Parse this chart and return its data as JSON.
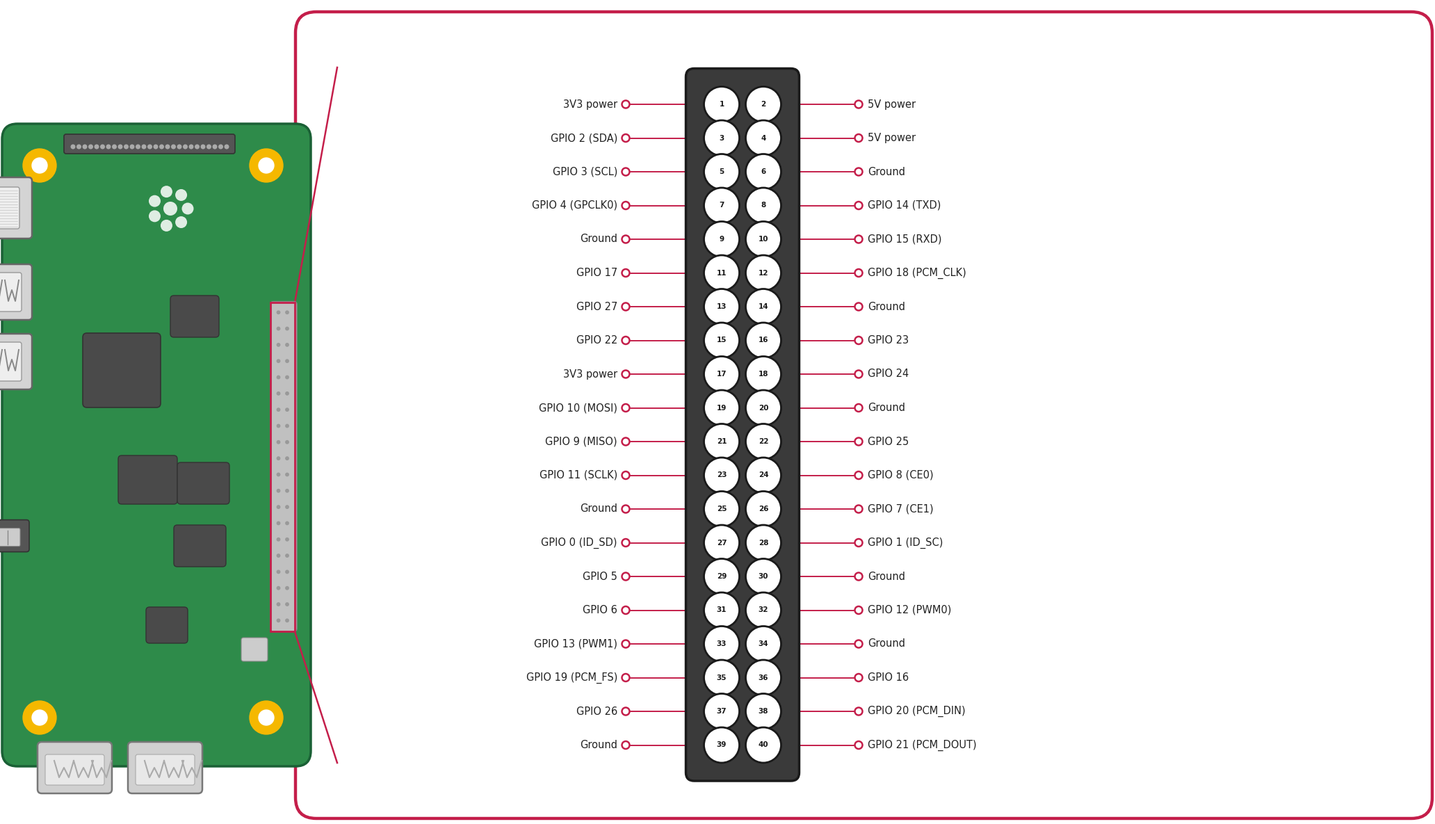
{
  "bg_color": "#ffffff",
  "board_color": "#2e8b4a",
  "board_edge_color": "#1a6035",
  "line_color": "#c41e4a",
  "dot_color": "#c41e4a",
  "text_color": "#222222",
  "rounded_box_color": "#c41e4a",
  "yellow_hole_color": "#f5b800",
  "connector_body_color": "#3a3a3a",
  "pin_odd_color": "#1a1a1a",
  "pin_even_color": "#3a3a3a",
  "pin_text_color": "#ffffff",
  "pins": [
    [
      1,
      2,
      "3V3 power",
      "5V power"
    ],
    [
      3,
      4,
      "GPIO 2 (SDA)",
      "5V power"
    ],
    [
      5,
      6,
      "GPIO 3 (SCL)",
      "Ground"
    ],
    [
      7,
      8,
      "GPIO 4 (GPCLK0)",
      "GPIO 14 (TXD)"
    ],
    [
      9,
      10,
      "Ground",
      "GPIO 15 (RXD)"
    ],
    [
      11,
      12,
      "GPIO 17",
      "GPIO 18 (PCM_CLK)"
    ],
    [
      13,
      14,
      "GPIO 27",
      "Ground"
    ],
    [
      15,
      16,
      "GPIO 22",
      "GPIO 23"
    ],
    [
      17,
      18,
      "3V3 power",
      "GPIO 24"
    ],
    [
      19,
      20,
      "GPIO 10 (MOSI)",
      "Ground"
    ],
    [
      21,
      22,
      "GPIO 9 (MISO)",
      "GPIO 25"
    ],
    [
      23,
      24,
      "GPIO 11 (SCLK)",
      "GPIO 8 (CE0)"
    ],
    [
      25,
      26,
      "Ground",
      "GPIO 7 (CE1)"
    ],
    [
      27,
      28,
      "GPIO 0 (ID_SD)",
      "GPIO 1 (ID_SC)"
    ],
    [
      29,
      30,
      "GPIO 5",
      "Ground"
    ],
    [
      31,
      32,
      "GPIO 6",
      "GPIO 12 (PWM0)"
    ],
    [
      33,
      34,
      "GPIO 13 (PWM1)",
      "Ground"
    ],
    [
      35,
      36,
      "GPIO 19 (PCM_FS)",
      "GPIO 16"
    ],
    [
      37,
      38,
      "GPIO 26",
      "GPIO 20 (PCM_DIN)"
    ],
    [
      39,
      40,
      "Ground",
      "GPIO 21 (PCM_DOUT)"
    ]
  ],
  "figsize": [
    20.64,
    11.85
  ],
  "dpi": 100
}
